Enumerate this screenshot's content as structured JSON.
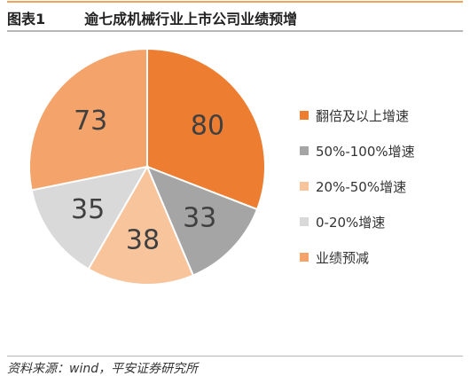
{
  "header": {
    "figure_label": "图表1",
    "title": "逾七成机械行业上市公司业绩预增"
  },
  "chart_data": {
    "type": "pie",
    "title": "逾七成机械行业上市公司业绩预增",
    "categories": [
      "翻倍及以上增速",
      "50%-100%增速",
      "20%-50%增速",
      "0-20%增速",
      "业绩预减"
    ],
    "values": [
      80,
      33,
      38,
      35,
      73
    ],
    "colors": [
      "#ed7d31",
      "#a5a5a5",
      "#f8c49c",
      "#d9d9d9",
      "#f4a46a"
    ],
    "start_angle_deg": 0,
    "direction": "clockwise",
    "legend_position": "right"
  },
  "source": "资料来源：wind，平安证券研究所"
}
